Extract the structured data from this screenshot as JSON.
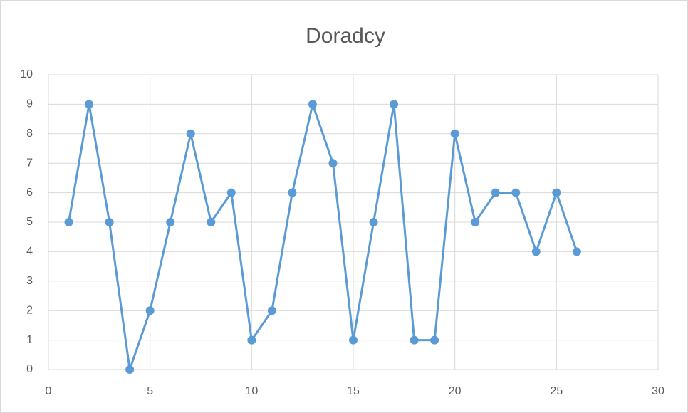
{
  "chart_data": {
    "type": "line",
    "title": "Doradcy",
    "x": [
      1,
      2,
      3,
      4,
      5,
      6,
      7,
      8,
      9,
      10,
      11,
      12,
      13,
      14,
      15,
      16,
      17,
      18,
      19,
      20,
      21,
      22,
      23,
      24,
      25,
      26
    ],
    "series": [
      {
        "color": "#5b9bd5",
        "values": [
          5,
          9,
          5,
          0,
          2,
          5,
          8,
          5,
          6,
          1,
          2,
          6,
          9,
          7,
          1,
          5,
          9,
          1,
          1,
          8,
          5,
          6,
          6,
          4,
          6,
          4
        ]
      }
    ],
    "xlim": [
      0,
      30
    ],
    "xticks": [
      0,
      5,
      10,
      15,
      20,
      25,
      30
    ],
    "ylim": [
      0,
      10
    ],
    "yticks": [
      0,
      1,
      2,
      3,
      4,
      5,
      6,
      7,
      8,
      9,
      10
    ],
    "grid": true
  }
}
